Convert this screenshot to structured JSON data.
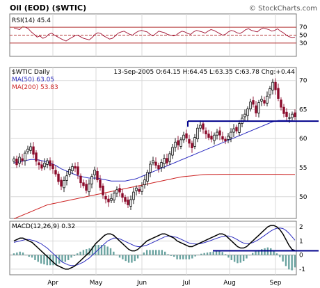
{
  "chart_data": {
    "type": "candlestick",
    "title": "Oil (EOD) ($WTIC)",
    "watermark": "© StockCharts.com",
    "x_axis": {
      "tick_labels": [
        "Apr",
        "May",
        "Jun",
        "Jul",
        "Aug",
        "Sep"
      ]
    },
    "rsi_panel": {
      "label": "RSI(14) 45.4",
      "ylim": [
        0,
        100
      ],
      "ticks": [
        70,
        50,
        30
      ],
      "tick_labels": [
        "70",
        "50",
        "30"
      ],
      "values": [
        68,
        66,
        64,
        72,
        70,
        66,
        58,
        52,
        45,
        48,
        42,
        45,
        52,
        55,
        50,
        46,
        42,
        38,
        35,
        40,
        44,
        48,
        50,
        46,
        42,
        40,
        38,
        44,
        52,
        56,
        54,
        48,
        44,
        40,
        42,
        48,
        55,
        58,
        60,
        56,
        52,
        50,
        56,
        60,
        62,
        60,
        58,
        52,
        48,
        54,
        60,
        58,
        56,
        52,
        50,
        48,
        50,
        56,
        60,
        58,
        54,
        52,
        58,
        62,
        60,
        58,
        55,
        60,
        64,
        62,
        58,
        54,
        50,
        52,
        58,
        62,
        60,
        56,
        54,
        58,
        64,
        66,
        62,
        60,
        58,
        64,
        68,
        66,
        64,
        60,
        62,
        66,
        60,
        56,
        50,
        46,
        44,
        45
      ]
    },
    "price_panel": {
      "label": "$WTIC Daily",
      "quote": "13-Sep-2005 O:64.15 H:64.45 L:63.35 C:63.78 Chg:+0.44",
      "legend": [
        {
          "name": "MA(50) 63.05",
          "color": "#2b2bbf"
        },
        {
          "name": "MA(200) 53.83",
          "color": "#cc2222"
        }
      ],
      "ylim": [
        46.5,
        72
      ],
      "ticks": [
        70,
        65,
        60,
        55,
        50
      ],
      "tick_labels": [
        "70",
        "65",
        "60",
        "55",
        "50"
      ],
      "close": [
        56.5,
        55.5,
        56.8,
        56.2,
        57.5,
        58.2,
        58.6,
        57.3,
        56.1,
        55.5,
        54.9,
        55.8,
        56.2,
        55.3,
        54.8,
        53.9,
        52.6,
        51.8,
        52.8,
        53.6,
        54.7,
        55.2,
        54.9,
        53.8,
        52.4,
        51.9,
        51.1,
        52.2,
        53.5,
        54.6,
        52.9,
        51.6,
        50.3,
        49.6,
        49.1,
        49.7,
        50.6,
        51.2,
        50.8,
        49.9,
        49.2,
        48.6,
        49.5,
        50.8,
        51.5,
        50.9,
        51.8,
        52.9,
        54.2,
        55.6,
        56.2,
        55.4,
        54.8,
        55.9,
        56.6,
        55.8,
        57.4,
        58.5,
        59.4,
        58.9,
        59.8,
        60.6,
        60.1,
        59.2,
        58.4,
        60.2,
        61.8,
        62.3,
        61.6,
        60.8,
        60.2,
        59.9,
        60.6,
        61.1,
        60.6,
        59.9,
        59.6,
        60.4,
        61.1,
        61.7,
        61.3,
        62.6,
        63.5,
        64.2,
        65.1,
        66.3,
        65.9,
        64.4,
        66.2,
        66.8,
        66.1,
        67.3,
        68.6,
        69.7,
        68.4,
        66.9,
        65.4,
        64.3,
        63.8,
        63.6,
        64.2,
        63.78
      ],
      "ma50": [
        55.8,
        55.9,
        56.0,
        56.1,
        56.2,
        56.3,
        56.4,
        56.4,
        56.4,
        56.3,
        56.2,
        56.1,
        56.0,
        55.8,
        55.6,
        55.4,
        55.1,
        54.8,
        54.6,
        54.4,
        54.2,
        54.0,
        53.8,
        53.6,
        53.5,
        53.4,
        53.3,
        53.2,
        53.2,
        53.2,
        53.2,
        53.1,
        53.0,
        52.9,
        52.8,
        52.7,
        52.7,
        52.7,
        52.7,
        52.7,
        52.7,
        52.8,
        52.9,
        53.0,
        53.1,
        53.3,
        53.5,
        53.7,
        53.9,
        54.1,
        54.3,
        54.5,
        54.7,
        54.9,
        55.1,
        55.3,
        55.5,
        55.7,
        55.9,
        56.1,
        56.3,
        56.5,
        56.7,
        56.9,
        57.1,
        57.3,
        57.5,
        57.7,
        57.9,
        58.1,
        58.3,
        58.5,
        58.7,
        58.9,
        59.1,
        59.3,
        59.5,
        59.7,
        59.9,
        60.1,
        60.3,
        60.5,
        60.7,
        60.9,
        61.1,
        61.3,
        61.5,
        61.7,
        61.9,
        62.1,
        62.3,
        62.5,
        62.7,
        62.9,
        63.0,
        63.1,
        63.1,
        63.1,
        63.1,
        63.1,
        63.05,
        63.05
      ],
      "ma200": [
        46.2,
        46.4,
        46.6,
        46.8,
        47.0,
        47.2,
        47.4,
        47.6,
        47.8,
        48.0,
        48.2,
        48.4,
        48.6,
        48.7,
        48.8,
        48.9,
        49.0,
        49.1,
        49.2,
        49.3,
        49.4,
        49.5,
        49.6,
        49.7,
        49.8,
        49.9,
        50.0,
        50.1,
        50.2,
        50.3,
        50.4,
        50.5,
        50.6,
        50.7,
        50.8,
        50.9,
        51.0,
        51.1,
        51.2,
        51.3,
        51.4,
        51.5,
        51.6,
        51.7,
        51.8,
        51.9,
        52.0,
        52.1,
        52.2,
        52.3,
        52.4,
        52.5,
        52.6,
        52.7,
        52.8,
        52.9,
        53.0,
        53.1,
        53.2,
        53.3,
        53.4,
        53.45,
        53.5,
        53.55,
        53.6,
        53.65,
        53.7,
        53.75,
        53.8,
        53.82,
        53.83,
        53.83,
        53.84,
        53.84,
        53.85,
        53.85,
        53.85,
        53.85,
        53.85,
        53.85,
        53.85,
        53.85,
        53.85,
        53.85,
        53.85,
        53.85,
        53.85,
        53.85,
        53.85,
        53.85,
        53.85,
        53.85,
        53.85,
        53.85,
        53.85,
        53.85,
        53.85,
        53.84,
        53.84,
        53.83,
        53.83,
        53.83
      ],
      "support_level": 63.0
    },
    "macd_panel": {
      "label": "MACD(12,26,9) 0.32",
      "ylim": [
        -1.3,
        2.3
      ],
      "ticks": [
        2,
        1,
        0,
        -1
      ],
      "tick_labels": [
        "2",
        "1",
        "0",
        "-1"
      ],
      "macd": [
        1.0,
        1.1,
        1.2,
        1.2,
        1.1,
        1.0,
        0.9,
        0.7,
        0.5,
        0.3,
        0.1,
        -0.1,
        -0.3,
        -0.5,
        -0.7,
        -0.8,
        -0.9,
        -1.0,
        -1.0,
        -0.9,
        -0.8,
        -0.6,
        -0.4,
        -0.2,
        0.0,
        0.2,
        0.5,
        0.8,
        1.0,
        1.2,
        1.4,
        1.5,
        1.5,
        1.4,
        1.2,
        1.0,
        0.8,
        0.6,
        0.4,
        0.3,
        0.3,
        0.4,
        0.6,
        0.8,
        1.0,
        1.1,
        1.2,
        1.3,
        1.4,
        1.5,
        1.5,
        1.4,
        1.3,
        1.2,
        1.0,
        0.9,
        0.8,
        0.7,
        0.6,
        0.6,
        0.7,
        0.8,
        0.9,
        1.0,
        1.1,
        1.2,
        1.3,
        1.4,
        1.5,
        1.5,
        1.4,
        1.2,
        1.0,
        0.8,
        0.6,
        0.5,
        0.5,
        0.6,
        0.8,
        1.0,
        1.2,
        1.4,
        1.6,
        1.8,
        2.0,
        2.1,
        2.1,
        2.0,
        1.8,
        1.5,
        1.1,
        0.7,
        0.4,
        0.32
      ],
      "signal": [
        0.9,
        0.95,
        1.0,
        1.05,
        1.1,
        1.1,
        1.05,
        1.0,
        0.9,
        0.8,
        0.65,
        0.5,
        0.3,
        0.1,
        -0.1,
        -0.3,
        -0.5,
        -0.6,
        -0.7,
        -0.75,
        -0.75,
        -0.7,
        -0.6,
        -0.5,
        -0.35,
        -0.2,
        0.0,
        0.2,
        0.4,
        0.6,
        0.8,
        1.0,
        1.1,
        1.2,
        1.2,
        1.15,
        1.05,
        0.95,
        0.85,
        0.75,
        0.65,
        0.6,
        0.6,
        0.65,
        0.7,
        0.8,
        0.9,
        1.0,
        1.1,
        1.2,
        1.3,
        1.35,
        1.35,
        1.3,
        1.25,
        1.15,
        1.05,
        0.95,
        0.85,
        0.8,
        0.78,
        0.78,
        0.82,
        0.88,
        0.95,
        1.02,
        1.1,
        1.18,
        1.25,
        1.32,
        1.35,
        1.35,
        1.3,
        1.2,
        1.08,
        0.95,
        0.85,
        0.8,
        0.82,
        0.88,
        0.98,
        1.1,
        1.25,
        1.4,
        1.55,
        1.7,
        1.82,
        1.9,
        1.92,
        1.88,
        1.75,
        1.55,
        1.3,
        1.05
      ],
      "support_level": 0.3
    }
  }
}
